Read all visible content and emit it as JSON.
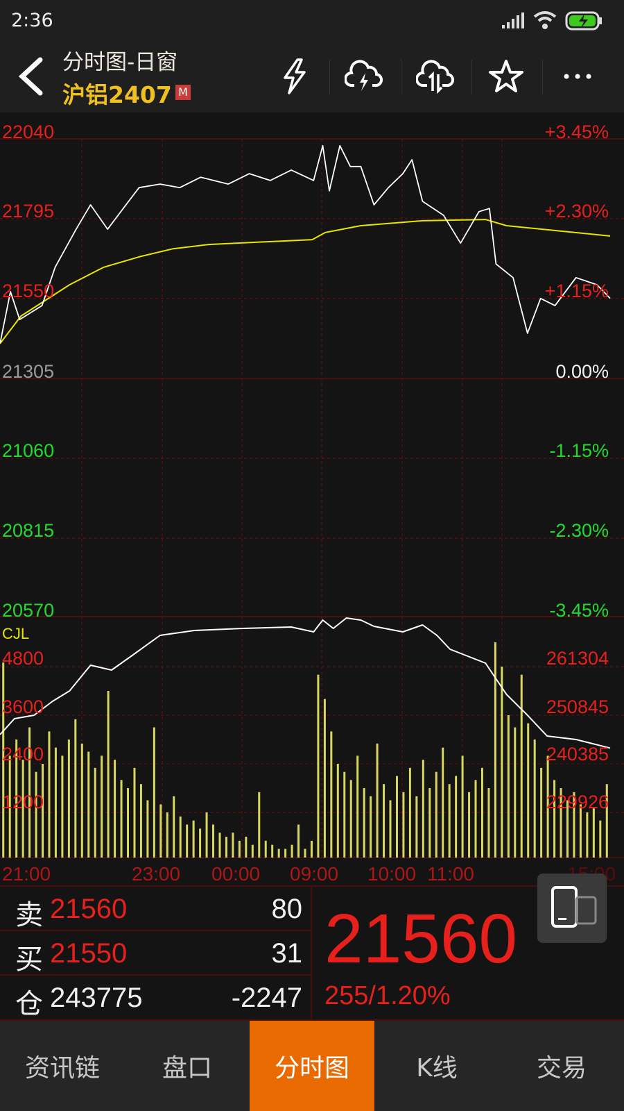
{
  "status_bar": {
    "time": "2:36",
    "icons": [
      "signal-icon",
      "wifi-icon",
      "battery-charging-icon"
    ]
  },
  "header": {
    "title": "分时图-日窗",
    "instrument": "沪铝2407",
    "badge": "M",
    "icons": [
      "back-icon",
      "lightning-icon",
      "cloud-lightning-icon",
      "cloud-sync-icon",
      "star-icon",
      "more-icon"
    ]
  },
  "colors": {
    "up": "#e8201c",
    "down": "#22d92c",
    "price_line": "#ffffff",
    "avg_line": "#e6e600",
    "volume": "#d8d860",
    "active_tab": "#e86a00",
    "grid": "#6a0f0f"
  },
  "price_axis": {
    "left": [
      "22040",
      "21795",
      "21550",
      "21305",
      "21060",
      "20815",
      "20570"
    ],
    "right": [
      "+3.45%",
      "+2.30%",
      "+1.15%",
      "0.00%",
      "-1.15%",
      "-2.30%",
      "-3.45%"
    ]
  },
  "volume_axis": {
    "label": "CJL",
    "left": [
      "4800",
      "3600",
      "2400",
      "1200"
    ],
    "right": [
      "261304",
      "250845",
      "240385",
      "229926"
    ]
  },
  "time_axis": [
    "21:00",
    "23:00",
    "00:00",
    "09:00",
    "10:00",
    "11:00",
    "15:00"
  ],
  "chart_data": {
    "type": "line",
    "sessions": [
      [
        "21:00",
        "01:00"
      ],
      [
        "09:00",
        "10:15"
      ],
      [
        "10:30",
        "11:30"
      ],
      [
        "13:30",
        "15:00"
      ]
    ],
    "price_range": [
      20570,
      22040
    ],
    "prev_close": 21305,
    "price": [
      [
        "21:00",
        21410
      ],
      [
        "21:08",
        21570
      ],
      [
        "21:15",
        21484
      ],
      [
        "21:32",
        21527
      ],
      [
        "21:42",
        21645
      ],
      [
        "21:58",
        21762
      ],
      [
        "22:09",
        21837
      ],
      [
        "22:22",
        21762
      ],
      [
        "22:38",
        21848
      ],
      [
        "22:46",
        21890
      ],
      [
        "23:02",
        21901
      ],
      [
        "23:17",
        21890
      ],
      [
        "23:33",
        21922
      ],
      [
        "23:54",
        21901
      ],
      [
        "00:10",
        21933
      ],
      [
        "00:26",
        21912
      ],
      [
        "00:42",
        21944
      ],
      [
        "00:59",
        21912
      ],
      [
        "09:06",
        22019
      ],
      [
        "09:11",
        21880
      ],
      [
        "09:19",
        22019
      ],
      [
        "09:27",
        21955
      ],
      [
        "09:35",
        21955
      ],
      [
        "09:45",
        21837
      ],
      [
        "09:56",
        21890
      ],
      [
        "10:07",
        21933
      ],
      [
        "10:14",
        21976
      ],
      [
        "10:37",
        21848
      ],
      [
        "10:53",
        21805
      ],
      [
        "11:06",
        21719
      ],
      [
        "11:20",
        21816
      ],
      [
        "11:28",
        21826
      ],
      [
        "13:33",
        21655
      ],
      [
        "13:46",
        21613
      ],
      [
        "13:57",
        21442
      ],
      [
        "14:07",
        21549
      ],
      [
        "14:18",
        21527
      ],
      [
        "14:34",
        21613
      ],
      [
        "14:50",
        21591
      ],
      [
        "15:00",
        21549
      ]
    ],
    "avg_price": [
      [
        "21:00",
        21410
      ],
      [
        "21:16",
        21495
      ],
      [
        "21:53",
        21591
      ],
      [
        "22:19",
        21645
      ],
      [
        "22:46",
        21677
      ],
      [
        "23:12",
        21702
      ],
      [
        "23:39",
        21715
      ],
      [
        "00:58",
        21730
      ],
      [
        "09:08",
        21752
      ],
      [
        "09:35",
        21773
      ],
      [
        "10:37",
        21788
      ],
      [
        "11:25",
        21792
      ],
      [
        "13:41",
        21773
      ],
      [
        "15:00",
        21741
      ]
    ],
    "open_interest": [
      [
        "21:00",
        246663
      ],
      [
        "21:11",
        250099
      ],
      [
        "21:26",
        250846
      ],
      [
        "21:40",
        253834
      ],
      [
        "21:53",
        256075
      ],
      [
        "22:09",
        261603
      ],
      [
        "22:25",
        260557
      ],
      [
        "22:40",
        263545
      ],
      [
        "23:02",
        268027
      ],
      [
        "23:28",
        269073
      ],
      [
        "00:05",
        269521
      ],
      [
        "00:42",
        269820
      ],
      [
        "00:59",
        268774
      ],
      [
        "09:06",
        271314
      ],
      [
        "09:14",
        269521
      ],
      [
        "09:24",
        271762
      ],
      [
        "09:35",
        271314
      ],
      [
        "09:45",
        269969
      ],
      [
        "10:07",
        268774
      ],
      [
        "10:37",
        270268
      ],
      [
        "10:48",
        268027
      ],
      [
        "10:58",
        265039
      ],
      [
        "11:25",
        262051
      ],
      [
        "13:41",
        255328
      ],
      [
        "13:57",
        250846
      ],
      [
        "14:12",
        246364
      ],
      [
        "14:34",
        245617
      ],
      [
        "15:00",
        243775
      ]
    ],
    "volume_interval_min": 5,
    "volume": [
      4900,
      2600,
      3000,
      2500,
      3300,
      2200,
      2400,
      3200,
      2800,
      2600,
      3000,
      3500,
      2900,
      2700,
      2300,
      2600,
      4200,
      2500,
      2000,
      1800,
      2300,
      1900,
      1500,
      3300,
      1400,
      1200,
      1600,
      1100,
      900,
      1000,
      800,
      1200,
      900,
      700,
      600,
      700,
      500,
      600,
      400,
      1700,
      500,
      400,
      300,
      300,
      400,
      900,
      300,
      500,
      4600,
      4000,
      3200,
      2400,
      2200,
      2000,
      2600,
      1800,
      1600,
      2900,
      1900,
      1500,
      2100,
      1700,
      2300,
      1600,
      2500,
      1800,
      2200,
      2800,
      1900,
      2100,
      2600,
      1700,
      2000,
      2300,
      1800,
      5400,
      4800,
      3600,
      3300,
      4600,
      3400,
      3000,
      2300,
      2600,
      2000,
      1800,
      1500,
      1700,
      1400,
      1200,
      1300,
      1000,
      1900
    ],
    "volume_range": [
      0,
      4800
    ],
    "oi_range": [
      229926,
      261304
    ]
  },
  "quote": {
    "sell_label": "卖",
    "sell_price": "21560",
    "sell_qty": "80",
    "buy_label": "买",
    "buy_price": "21550",
    "buy_qty": "31",
    "oi_label": "仓",
    "oi": "243775",
    "oi_change": "-2247",
    "last": "21560",
    "change": "255/1.20%"
  },
  "nav": [
    {
      "label": "资讯链"
    },
    {
      "label": "盘口"
    },
    {
      "label": "分时图",
      "active": true
    },
    {
      "label": "K线"
    },
    {
      "label": "交易"
    }
  ]
}
